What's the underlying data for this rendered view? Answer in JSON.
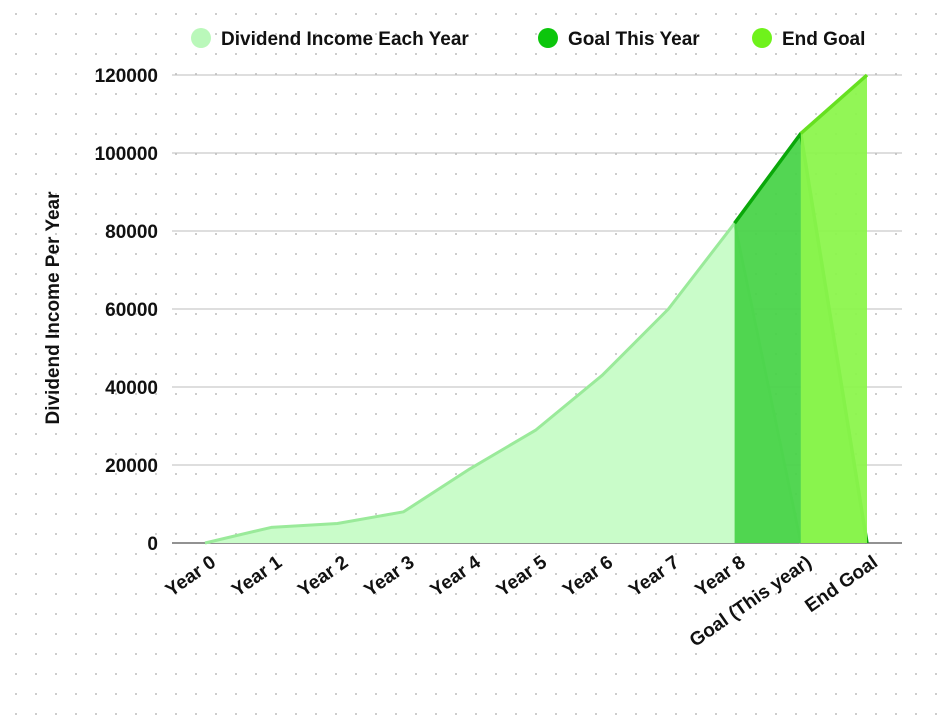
{
  "chart_data": {
    "type": "area",
    "title": "",
    "xlabel": "",
    "ylabel": "Dividend Income Per Year",
    "ylim": [
      0,
      120000
    ],
    "yticks": [
      0,
      20000,
      40000,
      60000,
      80000,
      100000,
      120000
    ],
    "grid": true,
    "legend_position": "top",
    "categories": [
      "Year 0",
      "Year 1",
      "Year 2",
      "Year 3",
      "Year 4",
      "Year 5",
      "Year 6",
      "Year 7",
      "Year 8",
      "Goal (This year)",
      "End Goal"
    ],
    "series": [
      {
        "name": "Dividend Income Each Year",
        "color": "#baf8ba",
        "values": [
          0,
          4000,
          5000,
          8000,
          19000,
          29000,
          43000,
          60000,
          82000,
          0,
          null
        ]
      },
      {
        "name": "Goal This Year",
        "color": "#0cc60c",
        "values": [
          null,
          null,
          null,
          null,
          null,
          null,
          null,
          null,
          82000,
          105000,
          0
        ]
      },
      {
        "name": "End Goal",
        "color": "#6ff21b",
        "values": [
          null,
          null,
          null,
          null,
          null,
          null,
          null,
          null,
          null,
          105000,
          120000
        ]
      }
    ]
  }
}
